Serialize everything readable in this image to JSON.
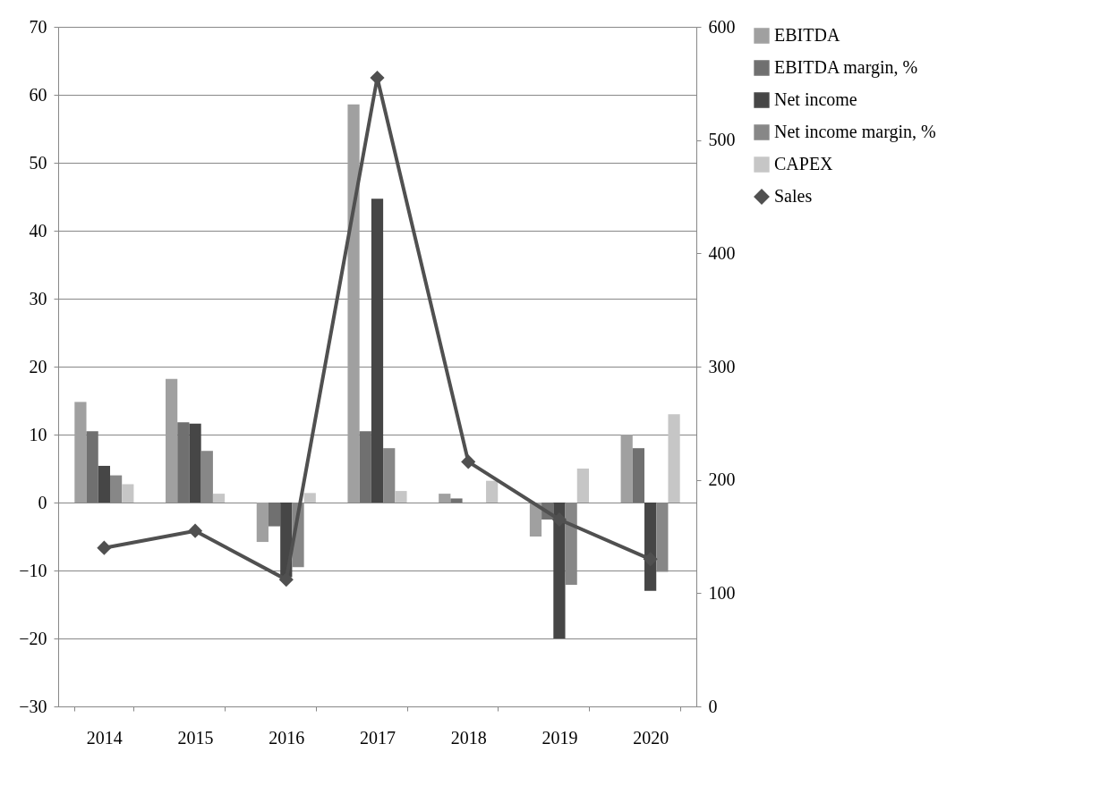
{
  "chart_data": {
    "type": "bar",
    "categories": [
      "2014",
      "2015",
      "2016",
      "2017",
      "2018",
      "2019",
      "2020"
    ],
    "series": [
      {
        "name": "EBITDA",
        "color": "#a0a0a0",
        "values": [
          14.8,
          18.2,
          -5.8,
          58.6,
          1.3,
          -5.0,
          10.0
        ]
      },
      {
        "name": "EBITDA margin, %",
        "color": "#707070",
        "values": [
          10.5,
          11.8,
          -3.5,
          10.5,
          0.6,
          -2.5,
          8.0
        ]
      },
      {
        "name": "Net income",
        "color": "#464646",
        "values": [
          5.4,
          11.6,
          -11.0,
          44.7,
          null,
          -20.0,
          -13.0
        ]
      },
      {
        "name": "Net income margin, %",
        "color": "#878787",
        "values": [
          4.0,
          7.6,
          -9.5,
          8.0,
          null,
          -12.1,
          -10.2
        ]
      },
      {
        "name": "CAPEX",
        "color": "#c6c6c6",
        "values": [
          2.7,
          1.3,
          1.4,
          1.7,
          3.2,
          5.0,
          13.0
        ]
      },
      {
        "name": "Sales",
        "color": "#505050",
        "type": "line",
        "axis": "y2",
        "marker": "diamond",
        "values": [
          140,
          155,
          112,
          555,
          216,
          165,
          130
        ]
      }
    ],
    "ylim": [
      -30,
      70
    ],
    "yticks": [
      -30,
      -20,
      -10,
      0,
      10,
      20,
      30,
      40,
      50,
      60,
      70
    ],
    "y2lim": [
      0,
      600
    ],
    "y2ticks": [
      0,
      100,
      200,
      300,
      400,
      500,
      600
    ],
    "grid": "y",
    "legend": "right"
  }
}
